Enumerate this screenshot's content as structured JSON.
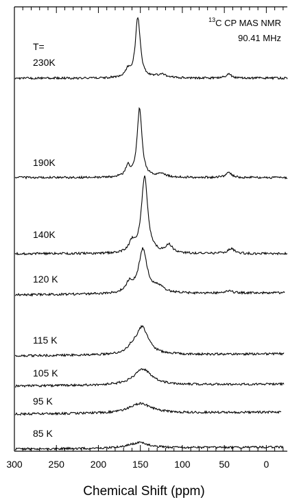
{
  "chart_data": {
    "type": "line",
    "title": "",
    "xlabel": "Chemical Shift (ppm)",
    "ylabel": "",
    "xlim": [
      300,
      -25
    ],
    "x_reversed": true,
    "x_ticks": [
      300,
      250,
      200,
      150,
      100,
      50,
      0
    ],
    "annotation": {
      "nucleus_sup": "13",
      "experiment": "C CP MAS NMR",
      "frequency": "90.41 MHz"
    },
    "temperature_header": "T=",
    "series": [
      {
        "name": "230K",
        "peaks": [
          {
            "ppm": 153,
            "height": 88,
            "width": 3.5
          },
          {
            "ppm": 165,
            "height": 10,
            "width": 4
          },
          {
            "ppm": 125,
            "height": 5,
            "width": 6
          },
          {
            "ppm": 45,
            "height": 6,
            "width": 4
          }
        ]
      },
      {
        "name": "190K",
        "peaks": [
          {
            "ppm": 151,
            "height": 100,
            "width": 3.5
          },
          {
            "ppm": 165,
            "height": 16,
            "width": 3
          },
          {
            "ppm": 125,
            "height": 6,
            "width": 6
          },
          {
            "ppm": 45,
            "height": 8,
            "width": 4
          }
        ]
      },
      {
        "name": "140K",
        "peaks": [
          {
            "ppm": 145,
            "height": 112,
            "width": 4.5
          },
          {
            "ppm": 160,
            "height": 14,
            "width": 4
          },
          {
            "ppm": 116,
            "height": 12,
            "width": 5
          },
          {
            "ppm": 42,
            "height": 7,
            "width": 5
          }
        ]
      },
      {
        "name": "120 K",
        "peaks": [
          {
            "ppm": 147,
            "height": 64,
            "width": 6
          },
          {
            "ppm": 163,
            "height": 14,
            "width": 5
          },
          {
            "ppm": 128,
            "height": 8,
            "width": 8
          },
          {
            "ppm": 45,
            "height": 3,
            "width": 6
          }
        ]
      },
      {
        "name": "115 K",
        "peaks": [
          {
            "ppm": 148,
            "height": 40,
            "width": 9
          },
          {
            "ppm": 160,
            "height": 6,
            "width": 6
          }
        ]
      },
      {
        "name": "105 K",
        "peaks": [
          {
            "ppm": 147,
            "height": 23,
            "width": 13
          }
        ]
      },
      {
        "name": "95 K",
        "peaks": [
          {
            "ppm": 150,
            "height": 14,
            "width": 16
          }
        ]
      },
      {
        "name": "85 K",
        "peaks": [
          {
            "ppm": 152,
            "height": 8,
            "width": 15
          }
        ]
      }
    ]
  }
}
